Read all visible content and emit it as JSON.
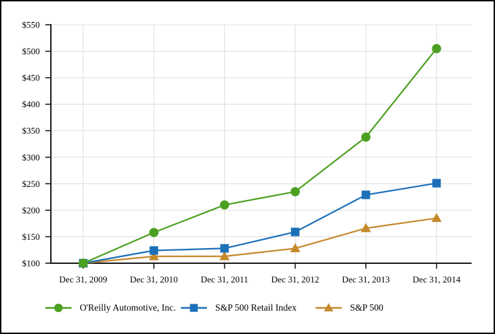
{
  "chart_data": {
    "type": "line",
    "title": "",
    "xlabel": "",
    "ylabel": "",
    "categories": [
      "Dec 31, 2009",
      "Dec 31, 2010",
      "Dec 31, 2011",
      "Dec 31, 2012",
      "Dec 31, 2013",
      "Dec 31, 2014"
    ],
    "series": [
      {
        "name": "O'Reilly Automotive, Inc.",
        "marker": "circle",
        "color": "#4CA021",
        "values": [
          100,
          158,
          210,
          235,
          338,
          505
        ]
      },
      {
        "name": "S&P 500 Retail Index",
        "marker": "square",
        "color": "#1C70B8",
        "values": [
          100,
          124,
          128,
          159,
          229,
          251
        ]
      },
      {
        "name": "S&P 500",
        "marker": "triangle",
        "color": "#C5892C",
        "values": [
          100,
          113,
          113,
          128,
          166,
          185
        ]
      }
    ],
    "ylim": [
      100,
      550
    ],
    "ytick_step": 50,
    "ytick_prefix": "$",
    "grid": true,
    "gridline_color": "#E0E0E0",
    "axis_color": "#1A1A1A",
    "legend_position": "bottom"
  }
}
